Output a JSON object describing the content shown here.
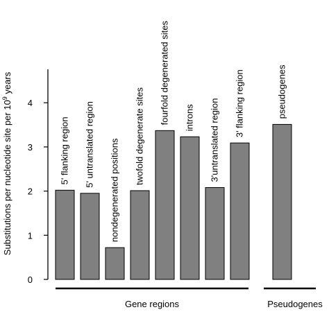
{
  "chart_data": {
    "type": "bar",
    "ylabel_prefix": "Substitutions per nucleotide site per 10",
    "ylabel_exponent": "9",
    "ylabel_suffix": " years",
    "ylim": [
      0,
      4.6
    ],
    "yticks": [
      "0",
      "1",
      "2",
      "3",
      "4"
    ],
    "grid": false,
    "bar_color": "#808080",
    "categories": [
      "5' flanking region",
      "5' untranslated region",
      "nondegenerated positions",
      "twofold degenerate sites",
      "fourfold degenerated sites",
      "introns",
      "3'untranslated region",
      "3' flanking region",
      "pseudogenes"
    ],
    "values": [
      2.02,
      1.95,
      0.72,
      2.01,
      3.37,
      3.23,
      2.08,
      3.09,
      3.51
    ],
    "groups": [
      {
        "label": "Gene regions",
        "categories": [
          0,
          1,
          2,
          3,
          4,
          5,
          6,
          7
        ]
      },
      {
        "label": "Pseudogenes",
        "categories": [
          8
        ]
      }
    ]
  }
}
